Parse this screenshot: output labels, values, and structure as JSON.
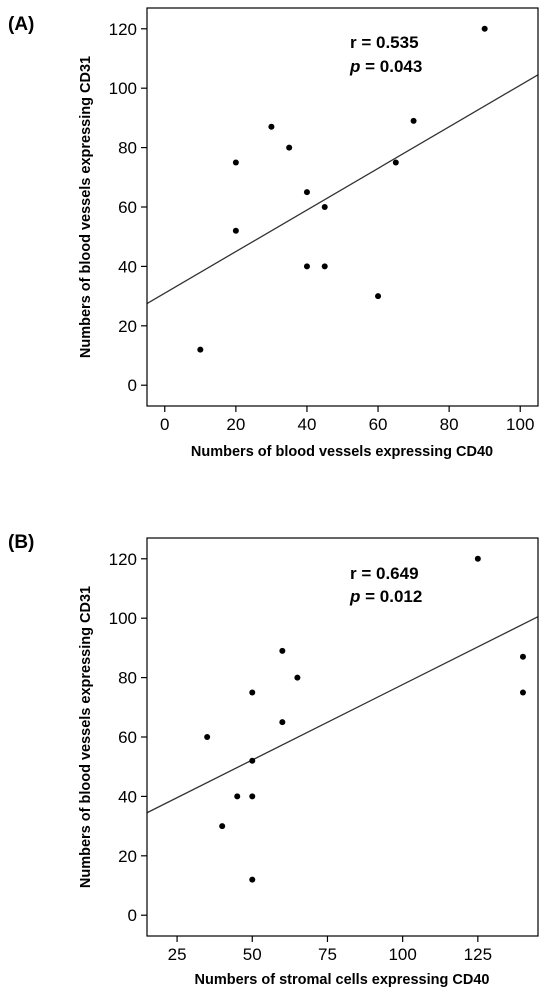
{
  "chart_data": [
    {
      "type": "scatter",
      "panel_label": "(A)",
      "xlabel": "Numbers of blood vessels expressing CD40",
      "ylabel": "Numbers of blood vessels expressing CD31",
      "xlim": [
        -5,
        105
      ],
      "ylim": [
        -7,
        127
      ],
      "xticks": [
        0,
        20,
        40,
        60,
        80,
        100
      ],
      "yticks": [
        0,
        20,
        40,
        60,
        80,
        100,
        120
      ],
      "grid": false,
      "points": [
        {
          "x": 10,
          "y": 12
        },
        {
          "x": 20,
          "y": 52
        },
        {
          "x": 20,
          "y": 75
        },
        {
          "x": 30,
          "y": 87
        },
        {
          "x": 35,
          "y": 80
        },
        {
          "x": 40,
          "y": 65
        },
        {
          "x": 40,
          "y": 40
        },
        {
          "x": 45,
          "y": 40
        },
        {
          "x": 45,
          "y": 60
        },
        {
          "x": 60,
          "y": 30
        },
        {
          "x": 65,
          "y": 75
        },
        {
          "x": 70,
          "y": 89
        },
        {
          "x": 90,
          "y": 120
        }
      ],
      "fit_line": {
        "x": [
          -5,
          105
        ],
        "y": [
          27.5,
          104.5
        ]
      },
      "stats": {
        "r_text": "r = 0.535",
        "p_symbol": "p",
        "p_text": " = 0.043"
      }
    },
    {
      "type": "scatter",
      "panel_label": "(B)",
      "xlabel": "Numbers of stromal cells expressing CD40",
      "ylabel": "Numbers of blood vessels expressing CD31",
      "xlim": [
        15,
        145
      ],
      "ylim": [
        -7,
        127
      ],
      "xticks": [
        25,
        50,
        75,
        100,
        125
      ],
      "yticks": [
        0,
        20,
        40,
        60,
        80,
        100,
        120
      ],
      "grid": false,
      "points": [
        {
          "x": 35,
          "y": 60
        },
        {
          "x": 40,
          "y": 30
        },
        {
          "x": 45,
          "y": 40
        },
        {
          "x": 50,
          "y": 75
        },
        {
          "x": 50,
          "y": 52
        },
        {
          "x": 50,
          "y": 40
        },
        {
          "x": 50,
          "y": 12
        },
        {
          "x": 60,
          "y": 89
        },
        {
          "x": 60,
          "y": 65
        },
        {
          "x": 65,
          "y": 80
        },
        {
          "x": 125,
          "y": 120
        },
        {
          "x": 140,
          "y": 87
        },
        {
          "x": 140,
          "y": 75
        }
      ],
      "fit_line": {
        "x": [
          15,
          145
        ],
        "y": [
          34.5,
          100.5
        ]
      },
      "stats": {
        "r_text": "r = 0.649",
        "p_symbol": "p",
        "p_text": " = 0.012"
      }
    }
  ]
}
